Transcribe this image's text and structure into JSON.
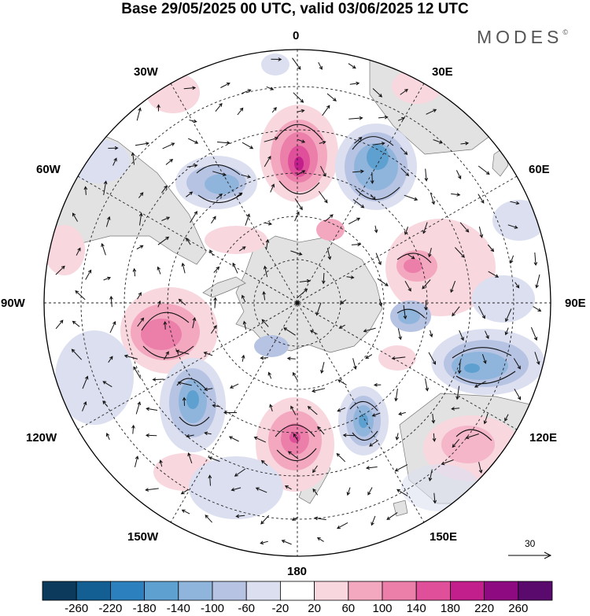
{
  "title": "Base 29/05/2025 00 UTC, valid 03/06/2025 12 UTC",
  "brand": "MODES",
  "brand_mark": "©",
  "longitude_labels": {
    "lon_0": "0",
    "lon_30e": "30E",
    "lon_60e": "60E",
    "lon_90e": "90E",
    "lon_120e": "120E",
    "lon_150e": "150E",
    "lon_180": "180",
    "lon_150w": "150W",
    "lon_120w": "120W",
    "lon_90w": "90W",
    "lon_60w": "60W",
    "lon_30w": "30W"
  },
  "reference_vector_label": "30",
  "colorbar": {
    "ticks": [
      "-260",
      "-220",
      "-180",
      "-140",
      "-100",
      "-60",
      "-20",
      "20",
      "60",
      "100",
      "140",
      "180",
      "220",
      "260"
    ],
    "colors": [
      "#0b3a5c",
      "#135f93",
      "#2b80bd",
      "#5ea0cf",
      "#90b5dc",
      "#b6c3e3",
      "#dcdff0",
      "#ffffff",
      "#f8d7df",
      "#f3a8c0",
      "#ec7eaa",
      "#e0509a",
      "#c21e8c",
      "#8e0a80",
      "#5a0a6d"
    ]
  },
  "colors": {
    "land": "#e2e2e2",
    "graticule": "#222222",
    "coast": "#555555"
  }
}
